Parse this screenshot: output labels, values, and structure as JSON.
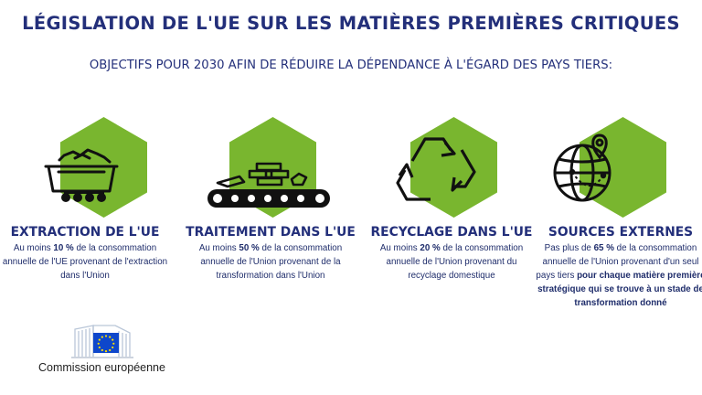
{
  "title": "LÉGISLATION DE L'UE SUR LES MATIÈRES PREMIÈRES CRITIQUES",
  "subtitle": "OBJECTIFS POUR 2030 AFIN DE RÉDUIRE LA DÉPENDANCE À L'ÉGARD DES PAYS TIERS:",
  "accent_color": "#79b62f",
  "text_color": "#232f7a",
  "columns": [
    {
      "icon": "mine-cart-icon",
      "heading": "EXTRACTION DE L'UE",
      "pre": "Au moins ",
      "highlight": "10 %",
      "post": " de la consommation annuelle de l'UE provenant de l'extraction dans l'Union"
    },
    {
      "icon": "conveyor-belt-icon",
      "heading": "TRAITEMENT DANS L'UE",
      "pre": "Au moins ",
      "highlight": "50 %",
      "post": " de la consommation annuelle de l'Union provenant de la transformation dans l'Union"
    },
    {
      "icon": "recycle-icon",
      "heading": "RECYCLAGE DANS L'UE",
      "pre": "Au moins ",
      "highlight": "20 %",
      "post": " de la consommation annuelle de l'Union provenant du recyclage domestique"
    },
    {
      "icon": "globe-pin-icon",
      "heading": "SOURCES EXTERNES",
      "pre": "Pas plus de ",
      "highlight": "65 %",
      "post": " de la consommation annuelle de l'Union provenant d'un seul pays tiers ",
      "bold_tail": "pour chaque matière première stratégique qui se trouve à un stade de transformation donné"
    }
  ],
  "logo_text": "Commission européenne"
}
